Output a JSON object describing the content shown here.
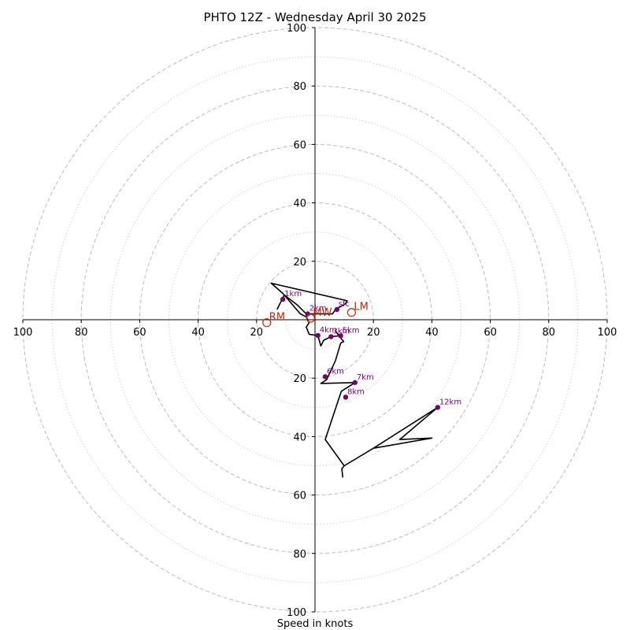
{
  "chart_data": {
    "type": "hodograph",
    "title": "PHTO 12Z - Wednesday April 30 2025",
    "xlabel": "Speed in knots",
    "range": [
      -100,
      100
    ],
    "grid": "on",
    "major_rings": [
      20,
      40,
      60,
      80,
      100
    ],
    "minor_rings": [
      10,
      30,
      50,
      70,
      90
    ],
    "x_tick_labels": [
      "100",
      "80",
      "60",
      "40",
      "20",
      "",
      "20",
      "40",
      "60",
      "80",
      "100"
    ],
    "x_tick_values": [
      -100,
      -80,
      -60,
      -40,
      -20,
      0,
      20,
      40,
      60,
      80,
      100
    ],
    "y_tick_labels": [
      "100",
      "80",
      "60",
      "40",
      "20",
      "20",
      "40",
      "60",
      "80",
      "100"
    ],
    "y_tick_values": [
      100,
      80,
      60,
      40,
      20,
      -20,
      -40,
      -60,
      -80,
      -100
    ],
    "colors": {
      "trace": "#000000",
      "height_marker": "#7b006f",
      "height_label": "#800080",
      "motion": "#cc2200",
      "grid": "#bbbbbb",
      "axis": "#000000"
    },
    "trace": [
      [
        9.5,
        -54
      ],
      [
        9.2,
        -51
      ],
      [
        10,
        -50
      ],
      [
        20,
        -44
      ],
      [
        40,
        -40.5
      ],
      [
        29,
        -41
      ],
      [
        42,
        -30
      ],
      [
        20,
        -44
      ],
      [
        10,
        -50
      ],
      [
        3.5,
        -41
      ],
      [
        9,
        -24.5
      ],
      [
        13.7,
        -21.5
      ],
      [
        2,
        -21.8
      ],
      [
        4,
        -20.5
      ],
      [
        7,
        -14
      ],
      [
        8.8,
        -8
      ],
      [
        9.8,
        -7.5
      ],
      [
        7,
        -4
      ],
      [
        8.3,
        -5.5
      ],
      [
        5.5,
        -5.8
      ],
      [
        3,
        -7
      ],
      [
        2,
        -9
      ],
      [
        1,
        -5.4
      ],
      [
        -2,
        -5
      ],
      [
        -3,
        -2.5
      ],
      [
        -2,
        -1
      ],
      [
        -3,
        1
      ],
      [
        -5,
        2
      ],
      [
        -11,
        9
      ],
      [
        -15,
        12.5
      ],
      [
        11,
        6.5
      ],
      [
        10.5,
        5.5
      ],
      [
        7,
        3.5
      ],
      [
        6,
        2
      ],
      [
        -3,
        2
      ],
      [
        -6,
        5
      ],
      [
        -10.5,
        8.5
      ],
      [
        -13,
        3.5
      ]
    ],
    "height_markers": [
      {
        "label": "1km",
        "u": -11,
        "v": 7
      },
      {
        "label": "2km",
        "u": -2.5,
        "v": 2
      },
      {
        "label": "3km",
        "u": 5.5,
        "v": -5.8
      },
      {
        "label": "4km",
        "u": 1,
        "v": -5.4
      },
      {
        "label": "5km",
        "u": 8.8,
        "v": -5.5
      },
      {
        "label": "6km",
        "u": 3.5,
        "v": -19.5
      },
      {
        "label": "7km",
        "u": 13.7,
        "v": -21.5
      },
      {
        "label": "8km",
        "u": 10.5,
        "v": -26.5
      },
      {
        "label": "12km",
        "u": 42,
        "v": -30
      },
      {
        "label": "sfc",
        "u": 7.5,
        "v": 3.5
      }
    ],
    "storm_motion": [
      {
        "label": "RM",
        "u": -16.5,
        "v": -1
      },
      {
        "label": "MW",
        "u": -1.5,
        "v": 0.5
      },
      {
        "label": "LM",
        "u": 12.5,
        "v": 2.5
      }
    ]
  }
}
